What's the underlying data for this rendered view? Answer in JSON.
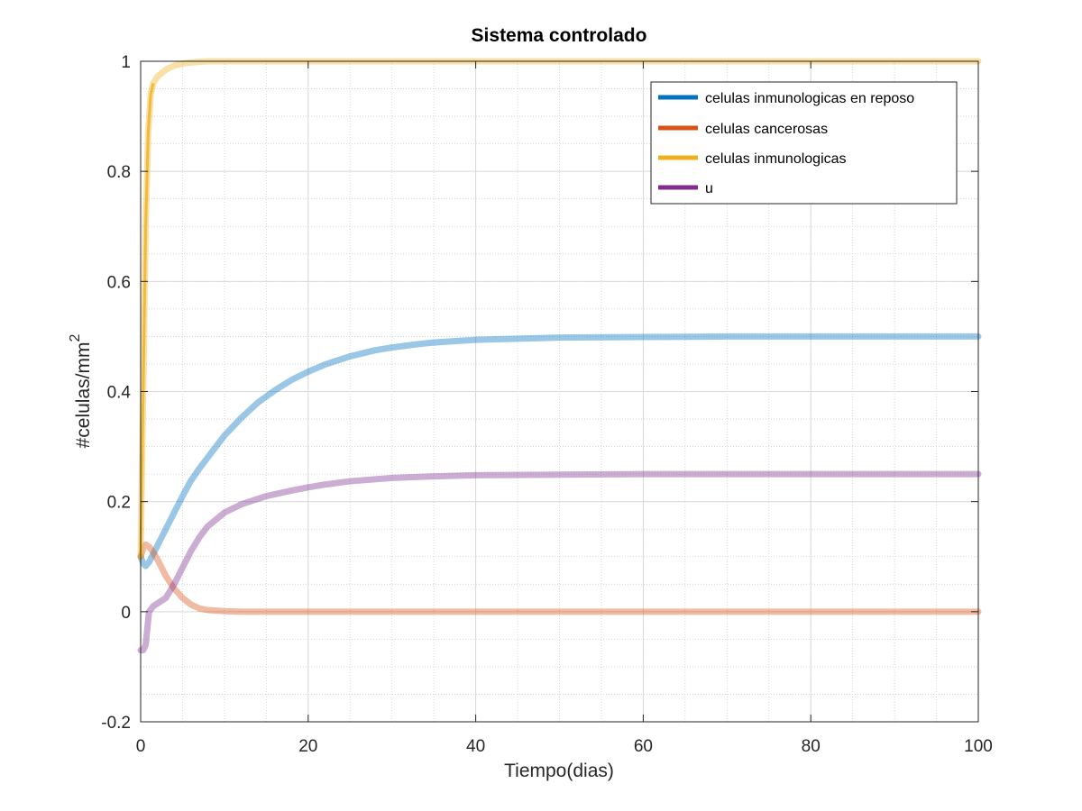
{
  "chart_data": {
    "type": "line",
    "title": "Sistema controlado",
    "xlabel": "Tiempo(dias)",
    "ylabel": "#celulas/mm",
    "ylabel_superscript": "2",
    "xlim": [
      0,
      100
    ],
    "ylim": [
      -0.2,
      1
    ],
    "x_ticks": [
      0,
      20,
      40,
      60,
      80,
      100
    ],
    "x_tick_labels": [
      "0",
      "20",
      "40",
      "60",
      "80",
      "100"
    ],
    "y_ticks": [
      -0.2,
      0,
      0.2,
      0.4,
      0.6,
      0.8,
      1
    ],
    "y_tick_labels": [
      "-0.2",
      "0",
      "0.2",
      "0.4",
      "0.6",
      "0.8",
      "1"
    ],
    "grid": true,
    "minor_grid": true,
    "legend_position": "top-right",
    "series": [
      {
        "name": "celulas inmunologicas en reposo",
        "color": "#0072BD",
        "x": [
          0,
          0.3,
          0.6,
          1,
          1.5,
          2,
          3,
          4,
          5,
          6,
          7,
          8,
          10,
          12,
          14,
          16,
          18,
          20,
          22,
          25,
          28,
          30,
          33,
          35,
          38,
          40,
          45,
          50,
          60,
          70,
          80,
          90,
          100
        ],
        "values": [
          0.1,
          0.088,
          0.083,
          0.09,
          0.105,
          0.12,
          0.15,
          0.18,
          0.21,
          0.238,
          0.26,
          0.28,
          0.32,
          0.352,
          0.38,
          0.402,
          0.421,
          0.436,
          0.449,
          0.464,
          0.475,
          0.48,
          0.486,
          0.489,
          0.492,
          0.494,
          0.496,
          0.498,
          0.499,
          0.5,
          0.5,
          0.5,
          0.5
        ]
      },
      {
        "name": "celulas cancerosas",
        "color": "#D95319",
        "x": [
          0,
          0.3,
          0.6,
          1,
          1.5,
          2,
          3,
          4,
          5,
          6,
          7,
          8,
          10,
          12,
          20,
          40,
          60,
          80,
          100
        ],
        "values": [
          0.1,
          0.115,
          0.122,
          0.118,
          0.108,
          0.095,
          0.065,
          0.042,
          0.025,
          0.013,
          0.006,
          0.003,
          0.001,
          0.0,
          0.0,
          0.0,
          0.0,
          0.0,
          0.0
        ]
      },
      {
        "name": "celulas inmunologicas",
        "color": "#EDB120",
        "x": [
          0,
          0.3,
          0.6,
          0.9,
          1.2,
          1.5,
          2,
          3,
          4,
          5,
          6,
          7,
          8,
          10,
          15,
          20,
          40,
          60,
          80,
          100
        ],
        "values": [
          0.1,
          0.4,
          0.7,
          0.87,
          0.94,
          0.96,
          0.972,
          0.985,
          0.992,
          0.996,
          0.998,
          0.999,
          1.0,
          1.0,
          1.0,
          1.0,
          1.0,
          1.0,
          1.0,
          1.0
        ]
      },
      {
        "name": "u",
        "color": "#7E2F8E",
        "x": [
          0,
          0.3,
          0.6,
          1,
          1.5,
          2,
          3,
          4,
          5,
          6,
          7,
          8,
          10,
          12,
          15,
          18,
          20,
          22,
          25,
          30,
          35,
          40,
          50,
          60,
          70,
          80,
          90,
          100
        ],
        "values": [
          -0.07,
          -0.07,
          -0.06,
          0.0,
          0.01,
          0.015,
          0.025,
          0.05,
          0.08,
          0.11,
          0.135,
          0.155,
          0.18,
          0.195,
          0.21,
          0.22,
          0.226,
          0.231,
          0.237,
          0.243,
          0.246,
          0.248,
          0.249,
          0.25,
          0.25,
          0.25,
          0.25,
          0.25
        ]
      }
    ]
  }
}
